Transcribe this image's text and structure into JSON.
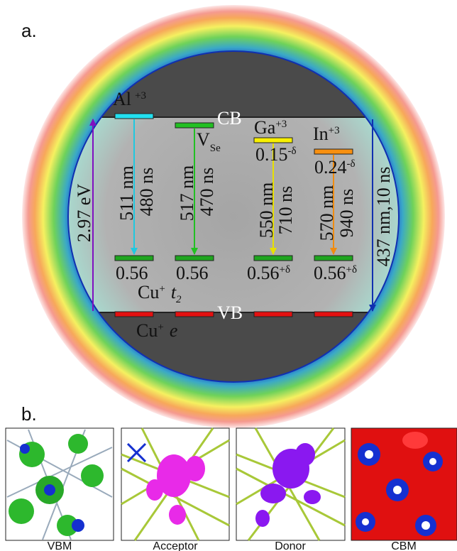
{
  "panel_a": {
    "label": "a.",
    "cb": "CB",
    "vb": "VB",
    "gap": "2.97 eV",
    "host_emission": "437 nm,10 ns",
    "cu_t2": {
      "base": "Cu",
      "sup": "+",
      "orbital": "t",
      "sub": "2"
    },
    "cu_e": {
      "base": "Cu",
      "sup": "+",
      "orbital": "e"
    },
    "dopants": [
      {
        "name": "Al",
        "sup": "+3",
        "wavelength": "511 nm",
        "lifetime": "480 ns",
        "acceptor": "0.56"
      },
      {
        "name": "V",
        "sub": "Se",
        "wavelength": "517 nm",
        "lifetime": "470 ns",
        "acceptor": "0.56"
      },
      {
        "name": "Ga",
        "sup": "+3",
        "depth": "0.15",
        "depth_sup": "-δ",
        "wavelength": "550 nm",
        "lifetime": "710 ns",
        "acceptor": "0.56",
        "acceptor_sup": "+δ"
      },
      {
        "name": "In",
        "sup": "+3",
        "depth": "0.24",
        "depth_sup": "-δ",
        "wavelength": "570 nm",
        "lifetime": "940 ns",
        "acceptor": "0.56",
        "acceptor_sup": "+δ"
      }
    ]
  },
  "panel_b": {
    "label": "b.",
    "captions": [
      "VBM",
      "Acceptor",
      "Donor",
      "CBM"
    ]
  }
}
